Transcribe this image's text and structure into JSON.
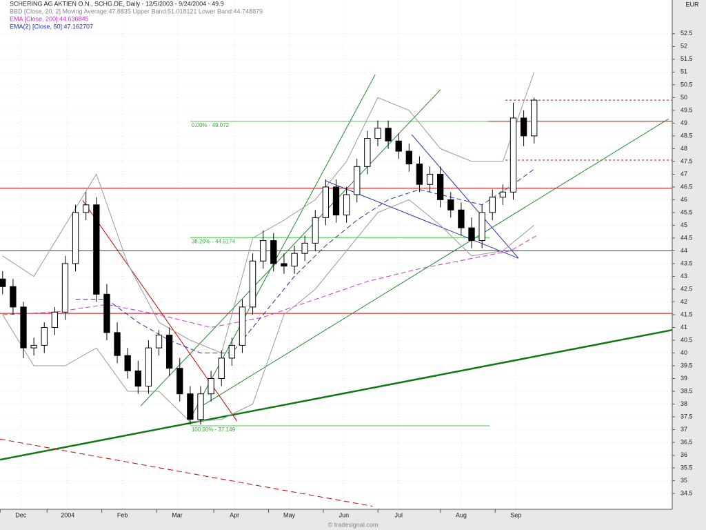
{
  "chart_data": {
    "type": "candlestick",
    "title": "SCHERING AG AKTIEN O.N., SCHG.DE, Daily - 12/5/2003 - 9/24/2004 - 49.9",
    "indicator_labels": [
      "BBD [Close, 20, 2] Moving Average:47.8835 Upper Band:51.018121 Lower Band:44.748879",
      "EMA [Close, 200]:44.636845",
      "EMA(2) [Close, 50]:47.162707"
    ],
    "currency": "EUR",
    "source": "© tradesignal.com",
    "xlim": [
      -1,
      257
    ],
    "ylim": [
      33.88,
      53.82
    ],
    "xticks": [
      {
        "value": 7,
        "label": "Dec"
      },
      {
        "value": 25,
        "label": "2004"
      },
      {
        "value": 46,
        "label": "Feb"
      },
      {
        "value": 67,
        "label": "Mar"
      },
      {
        "value": 89,
        "label": "Apr"
      },
      {
        "value": 110,
        "label": "May"
      },
      {
        "value": 131,
        "label": "Jun"
      },
      {
        "value": 152,
        "label": "Jul"
      },
      {
        "value": 176,
        "label": "Aug"
      },
      {
        "value": 197,
        "label": "Sep"
      }
    ],
    "yticks": [
      34.5,
      35,
      35.5,
      36,
      36.5,
      37,
      37.5,
      38,
      38.5,
      39,
      39.5,
      40,
      40.5,
      41,
      41.5,
      42,
      42.5,
      43,
      43.5,
      44,
      44.5,
      45,
      45.5,
      46,
      46.5,
      47,
      47.5,
      48,
      48.5,
      49,
      49.5,
      50,
      50.5,
      51,
      51.5,
      52,
      52.5
    ],
    "grid": true,
    "up_color": "#ffffff",
    "down_color": "#000000",
    "candles": {
      "x": [
        0,
        4,
        8,
        12,
        16,
        20,
        24,
        28,
        32,
        36,
        40,
        44,
        48,
        52,
        56,
        60,
        64,
        68,
        72,
        76,
        80,
        84,
        88,
        92,
        96,
        100,
        104,
        108,
        112,
        116,
        120,
        124,
        128,
        132,
        136,
        140,
        144,
        148,
        152,
        156,
        160,
        164,
        168,
        172,
        176,
        180,
        184,
        188,
        192,
        196,
        200,
        204
      ],
      "open": [
        42.9,
        42.6,
        41.8,
        40.2,
        40.3,
        41.0,
        41.6,
        43.5,
        45.5,
        45.8,
        42.3,
        40.8,
        39.9,
        39.3,
        38.7,
        40.2,
        40.7,
        39.4,
        38.4,
        37.4,
        38.4,
        39.0,
        39.8,
        40.3,
        41.8,
        43.6,
        44.4,
        43.5,
        43.4,
        43.9,
        44.3,
        45.3,
        46.5,
        45.4,
        46.2,
        47.3,
        48.4,
        48.8,
        48.3,
        47.9,
        47.4,
        46.6,
        47.0,
        46.0,
        45.6,
        44.9,
        44.4,
        45.5,
        46.1,
        46.3,
        49.2,
        48.5
      ],
      "high": [
        43.2,
        42.9,
        42.0,
        40.6,
        41.2,
        41.8,
        43.8,
        45.8,
        46.3,
        46.1,
        42.7,
        41.2,
        40.2,
        39.7,
        40.5,
        40.9,
        41.0,
        39.8,
        38.7,
        38.7,
        39.3,
        40.1,
        40.6,
        42.1,
        43.9,
        44.8,
        44.7,
        43.9,
        44.2,
        44.6,
        45.6,
        46.8,
        46.8,
        46.5,
        47.6,
        48.7,
        49.1,
        49.1,
        48.6,
        48.2,
        47.7,
        47.3,
        47.3,
        46.3,
        45.9,
        45.3,
        45.8,
        46.4,
        46.6,
        49.8,
        49.5,
        50.0
      ],
      "low": [
        42.3,
        41.5,
        39.8,
        39.9,
        40.0,
        40.7,
        41.3,
        43.2,
        45.2,
        42.0,
        40.5,
        39.6,
        39.0,
        38.4,
        38.4,
        39.9,
        39.1,
        38.1,
        37.2,
        37.2,
        38.1,
        38.7,
        39.5,
        40.0,
        41.5,
        43.3,
        43.2,
        43.1,
        43.1,
        43.6,
        44.0,
        45.0,
        45.1,
        45.1,
        45.9,
        47.0,
        48.1,
        48.0,
        47.6,
        47.1,
        46.3,
        46.3,
        45.7,
        45.3,
        44.6,
        44.1,
        44.1,
        45.2,
        45.8,
        46.0,
        48.1,
        48.2
      ],
      "close": [
        42.6,
        41.8,
        40.2,
        40.3,
        41.0,
        41.6,
        43.5,
        45.5,
        45.8,
        42.3,
        40.8,
        39.9,
        39.3,
        38.7,
        40.2,
        40.7,
        39.4,
        38.4,
        37.4,
        38.4,
        39.0,
        39.8,
        40.3,
        41.8,
        43.6,
        44.4,
        43.5,
        43.4,
        43.9,
        44.3,
        45.3,
        46.5,
        45.4,
        46.2,
        47.3,
        48.4,
        48.8,
        48.3,
        47.9,
        47.4,
        46.6,
        47.0,
        46.0,
        45.6,
        44.9,
        44.4,
        45.5,
        46.1,
        46.3,
        49.2,
        48.5,
        49.9
      ]
    },
    "series": [
      {
        "name": "EMA [Close, 200]",
        "color": "#cc33cc",
        "dash": "7,4",
        "x": [
          0,
          20,
          40,
          60,
          80,
          100,
          120,
          140,
          160,
          180,
          195,
          205
        ],
        "values": [
          41.5,
          41.6,
          41.9,
          41.5,
          41.0,
          41.4,
          42.1,
          42.8,
          43.3,
          43.7,
          44.0,
          44.6
        ]
      },
      {
        "name": "EMA(2) [Close, 50]",
        "color": "#2233aa",
        "dash": "7,4",
        "x": [
          28,
          40,
          52,
          64,
          76,
          88,
          100,
          112,
          124,
          136,
          148,
          160,
          172,
          184,
          196,
          204
        ],
        "values": [
          42.1,
          42.1,
          41.2,
          40.5,
          40.0,
          40.0,
          41.5,
          43.0,
          44.2,
          45.2,
          46.0,
          46.4,
          46.1,
          45.8,
          46.6,
          47.2
        ]
      },
      {
        "name": "Upper Band",
        "color": "#999999",
        "x": [
          0,
          12,
          24,
          36,
          48,
          60,
          72,
          84,
          96,
          108,
          120,
          132,
          144,
          156,
          168,
          180,
          192,
          204
        ],
        "values": [
          43.8,
          43.0,
          45.0,
          47.0,
          43.5,
          41.2,
          40.5,
          40.0,
          44.5,
          45.2,
          46.0,
          47.5,
          50.0,
          49.5,
          48.0,
          47.5,
          47.5,
          51.0
        ]
      },
      {
        "name": "Lower Band",
        "color": "#999999",
        "x": [
          0,
          12,
          24,
          36,
          48,
          60,
          72,
          84,
          96,
          108,
          120,
          132,
          144,
          156,
          168,
          180,
          192,
          204
        ],
        "values": [
          41.5,
          39.5,
          39.5,
          40.2,
          38.5,
          38.5,
          37.3,
          37.4,
          38.0,
          41.5,
          42.5,
          44.0,
          45.5,
          46.0,
          45.0,
          43.8,
          44.0,
          45.0
        ]
      }
    ],
    "hlines": [
      {
        "value": 46.45,
        "from": -1,
        "color": "#cc0000"
      },
      {
        "value": 44.0,
        "from": -1,
        "color": "#cc0000"
      },
      {
        "value": 41.55,
        "from": -1,
        "color": "#cc0000"
      },
      {
        "value": 49.07,
        "from": 186,
        "color": "#cc0000"
      },
      {
        "value": 49.9,
        "from": 193,
        "color": "#cc0000",
        "dash": "3,3"
      },
      {
        "value": 47.55,
        "from": 193,
        "color": "#cc0000",
        "dash": "3,3"
      }
    ],
    "fib_levels": [
      {
        "value": 49.072,
        "label": "0.00% - 49.072"
      },
      {
        "value": 44.5174,
        "label": "38.20% - 44.5174"
      },
      {
        "value": 37.149,
        "label": "100.00% - 37.149"
      }
    ],
    "fib_range": [
      72,
      187
    ],
    "trendlines": [
      {
        "x": [
          -1,
          257
        ],
        "y": [
          35.82,
          40.9
        ],
        "color": "#117711",
        "width": 2.5
      },
      {
        "x": [
          71.8,
          143
        ],
        "y": [
          37.39,
          50.9
        ],
        "color": "#22882a",
        "width": 1
      },
      {
        "x": [
          53,
          168
        ],
        "y": [
          37.93,
          50.3
        ],
        "color": "#22882a",
        "width": 1
      },
      {
        "x": [
          75.6,
          255.7
        ],
        "y": [
          37.87,
          49.17
        ],
        "color": "#22882a",
        "width": 1
      },
      {
        "x": [
          30.7,
          90
        ],
        "y": [
          45.98,
          37.33
        ],
        "color": "#cc0000",
        "width": 1
      },
      {
        "x": [
          124,
          198
        ],
        "y": [
          46.74,
          43.71
        ],
        "color": "#2233aa",
        "width": 1
      },
      {
        "x": [
          157,
          198
        ],
        "y": [
          48.55,
          43.71
        ],
        "color": "#2233aa",
        "width": 1
      },
      {
        "x": [
          -1,
          142
        ],
        "y": [
          36.63,
          34.0
        ],
        "color": "#cc0000",
        "width": 1,
        "dash": "8,5"
      }
    ]
  }
}
